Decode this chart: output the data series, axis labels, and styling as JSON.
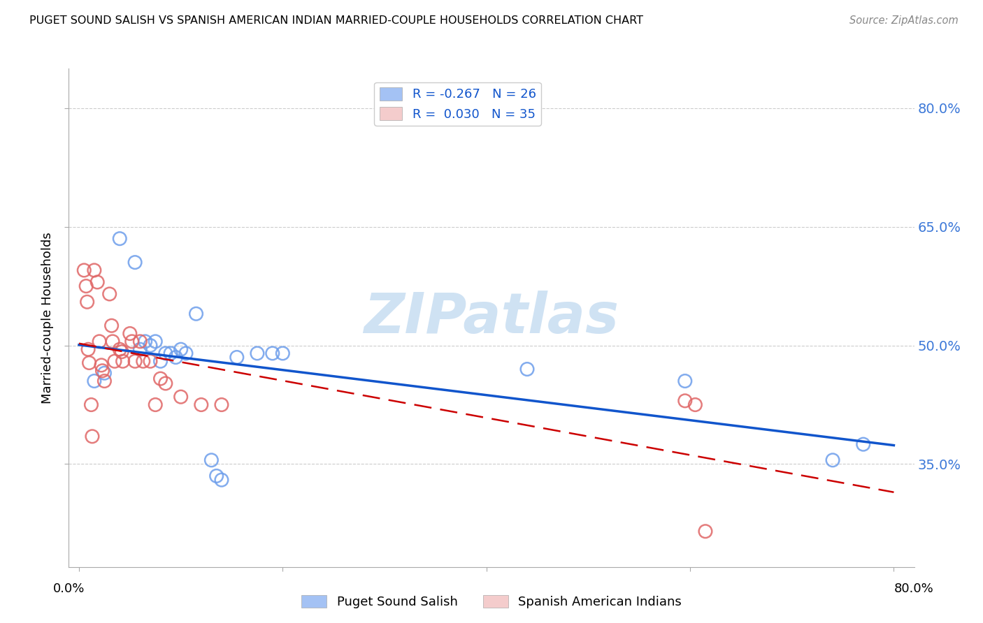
{
  "title": "PUGET SOUND SALISH VS SPANISH AMERICAN INDIAN MARRIED-COUPLE HOUSEHOLDS CORRELATION CHART",
  "source": "Source: ZipAtlas.com",
  "ylabel": "Married-couple Households",
  "ytick_values": [
    0.35,
    0.5,
    0.65,
    0.8
  ],
  "xtick_values": [
    0.0,
    0.2,
    0.4,
    0.6,
    0.8
  ],
  "xlim": [
    -0.01,
    0.82
  ],
  "ylim": [
    0.22,
    0.85
  ],
  "blue_label": "Puget Sound Salish",
  "pink_label": "Spanish American Indians",
  "blue_R": "-0.267",
  "blue_N": "26",
  "pink_R": "0.030",
  "pink_N": "35",
  "blue_color": "#a4c2f4",
  "pink_color": "#f4cccc",
  "blue_edge_color": "#6d9eeb",
  "pink_edge_color": "#e06666",
  "blue_line_color": "#1155cc",
  "pink_line_color": "#cc0000",
  "blue_x": [
    0.015,
    0.025,
    0.04,
    0.055,
    0.06,
    0.065,
    0.07,
    0.075,
    0.08,
    0.085,
    0.09,
    0.095,
    0.1,
    0.105,
    0.115,
    0.13,
    0.135,
    0.14,
    0.155,
    0.175,
    0.19,
    0.2,
    0.44,
    0.595,
    0.74,
    0.77
  ],
  "blue_y": [
    0.455,
    0.465,
    0.635,
    0.605,
    0.495,
    0.505,
    0.5,
    0.505,
    0.48,
    0.49,
    0.49,
    0.485,
    0.495,
    0.49,
    0.54,
    0.355,
    0.335,
    0.33,
    0.485,
    0.49,
    0.49,
    0.49,
    0.47,
    0.455,
    0.355,
    0.375
  ],
  "pink_x": [
    0.005,
    0.007,
    0.008,
    0.009,
    0.01,
    0.012,
    0.013,
    0.015,
    0.018,
    0.02,
    0.022,
    0.023,
    0.025,
    0.03,
    0.032,
    0.033,
    0.035,
    0.04,
    0.042,
    0.043,
    0.05,
    0.052,
    0.055,
    0.06,
    0.063,
    0.07,
    0.075,
    0.08,
    0.085,
    0.1,
    0.12,
    0.14,
    0.595,
    0.605,
    0.615
  ],
  "pink_y": [
    0.595,
    0.575,
    0.555,
    0.495,
    0.478,
    0.425,
    0.385,
    0.595,
    0.58,
    0.505,
    0.475,
    0.468,
    0.455,
    0.565,
    0.525,
    0.505,
    0.48,
    0.495,
    0.492,
    0.48,
    0.515,
    0.505,
    0.48,
    0.505,
    0.48,
    0.48,
    0.425,
    0.458,
    0.452,
    0.435,
    0.425,
    0.425,
    0.43,
    0.425,
    0.265
  ],
  "watermark": "ZIPatlas",
  "watermark_color": "#cfe2f3",
  "background_color": "#ffffff",
  "grid_color": "#cccccc"
}
